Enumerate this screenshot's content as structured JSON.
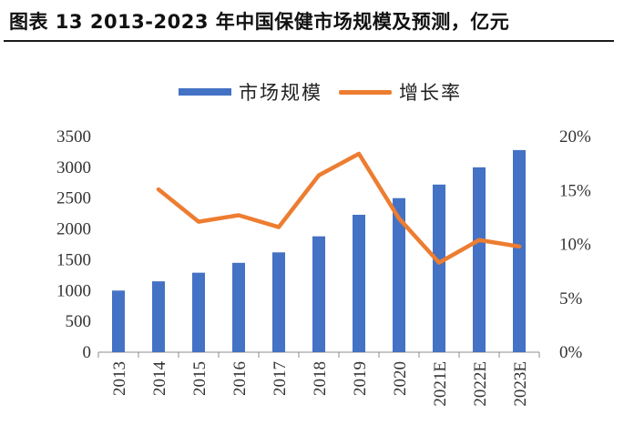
{
  "title": "图表 13 2013-2023 年中国保健市场规模及预测，亿元",
  "legend": {
    "bar_label": "市场规模",
    "line_label": "增长率"
  },
  "colors": {
    "bar": "#4472C4",
    "line": "#ED7D31"
  },
  "chart_data": {
    "type": "bar",
    "title": "图表 13 2013-2023 年中国保健市场规模及预测，亿元",
    "categories": [
      "2013",
      "2014",
      "2015",
      "2016",
      "2017",
      "2018",
      "2019",
      "2020",
      "2021E",
      "2022E",
      "2023E"
    ],
    "series": [
      {
        "name": "市场规模",
        "type": "bar",
        "axis": "left",
        "values": [
          1000,
          1150,
          1290,
          1450,
          1620,
          1880,
          2230,
          2500,
          2720,
          3000,
          3280
        ]
      },
      {
        "name": "增长率",
        "type": "line",
        "axis": "right",
        "values": [
          null,
          15.1,
          12.1,
          12.7,
          11.6,
          16.4,
          18.4,
          12.4,
          8.3,
          10.4,
          9.8
        ]
      }
    ],
    "y_left": {
      "ylim": [
        0,
        3500
      ],
      "ticks": [
        0,
        500,
        1000,
        1500,
        2000,
        2500,
        3000,
        3500
      ]
    },
    "y_right": {
      "ylim": [
        0,
        20
      ],
      "ticks": [
        "0%",
        "5%",
        "10%",
        "15%",
        "20%"
      ]
    },
    "legend_position": "top-center",
    "grid": false
  }
}
